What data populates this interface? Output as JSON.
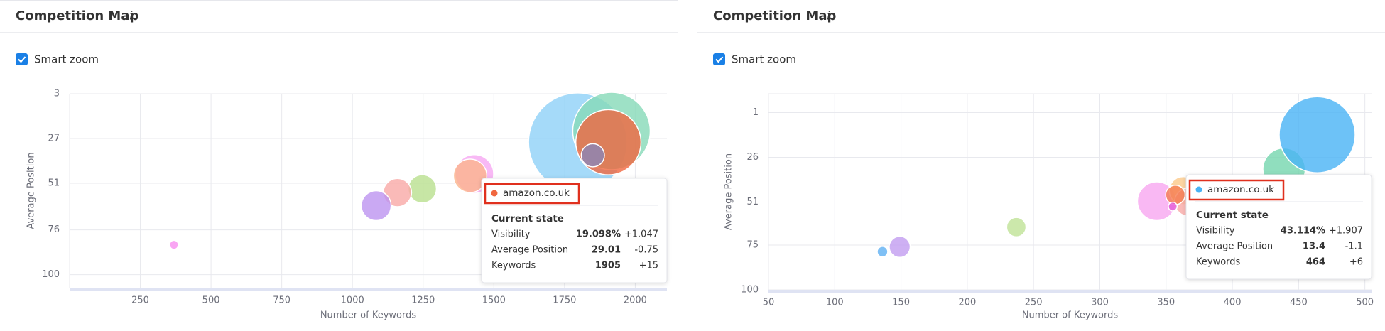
{
  "chart_data": [
    {
      "type": "bubble",
      "title": "Competition Map",
      "checkbox_label": "Smart zoom",
      "x_label": "Number of Keywords",
      "y_label": "Average Position",
      "xlim": [
        0,
        2112
      ],
      "xticks": [
        250,
        500,
        750,
        1000,
        1250,
        1500,
        1750,
        2000
      ],
      "ylim": [
        3,
        107
      ],
      "yticks": [
        3,
        27,
        51,
        76,
        100
      ],
      "y_inverted": true,
      "grid": true,
      "x": [
        1797,
        1916,
        1905,
        1850,
        1431,
        1416,
        1247,
        1159,
        1084,
        369
      ],
      "values": [
        29,
        23,
        29.01,
        36,
        46,
        47,
        54,
        56,
        63,
        84
      ],
      "sizes": [
        43.7,
        27,
        19.098,
        2.4,
        6.7,
        5,
        3.6,
        3.6,
        4,
        0.35
      ],
      "colors": [
        "#8fd1f7",
        "#86dab8",
        "#f0673f",
        "#8a86b8",
        "#f6a8f2",
        "#fbb48c",
        "#b9e08f",
        "#f9a9a6",
        "#bd93f0",
        "#f78ff0"
      ],
      "tooltip": {
        "domain": "amazon.co.uk",
        "dot_color": "#f0673f",
        "heading": "Current state",
        "rows": [
          {
            "label": "Visibility",
            "value": "19.098%",
            "change": "+1.047"
          },
          {
            "label": "Average Position",
            "value": "29.01",
            "change": "-0.75"
          },
          {
            "label": "Keywords",
            "value": "1905",
            "change": "+15"
          }
        ]
      }
    },
    {
      "type": "bubble",
      "title": "Competition Map",
      "checkbox_label": "Smart zoom",
      "x_label": "Number of Keywords",
      "y_label": "Average Position",
      "xlim": [
        50,
        505
      ],
      "xticks": [
        50,
        100,
        150,
        200,
        250,
        300,
        350,
        400,
        450,
        500
      ],
      "ylim": [
        -9.5,
        100
      ],
      "yticks": [
        1,
        26,
        51,
        75,
        100
      ],
      "y_inverted": true,
      "grid": true,
      "x": [
        439,
        464,
        343,
        363,
        367,
        357,
        355,
        237,
        149,
        136
      ],
      "values": [
        32.7,
        13.4,
        50.5,
        44.6,
        51,
        47,
        53.5,
        65,
        76,
        78.7
      ],
      "sizes": [
        13.4,
        43.114,
        11.2,
        5.9,
        5.9,
        2.8,
        0.58,
        2.8,
        3.3,
        0.83
      ],
      "colors": [
        "#74d6ae",
        "#49b3f5",
        "#f7a6f0",
        "#fbc98a",
        "#f9a9a6",
        "#f57c50",
        "#e35ad8",
        "#bfe296",
        "#c29cf0",
        "#5fb0f2"
      ],
      "tooltip": {
        "domain": "amazon.co.uk",
        "dot_color": "#49b3f5",
        "heading": "Current state",
        "rows": [
          {
            "label": "Visibility",
            "value": "43.114%",
            "change": "+1.907"
          },
          {
            "label": "Average Position",
            "value": "13.4",
            "change": "-1.1"
          },
          {
            "label": "Keywords",
            "value": "464",
            "change": "+6"
          }
        ]
      }
    }
  ]
}
